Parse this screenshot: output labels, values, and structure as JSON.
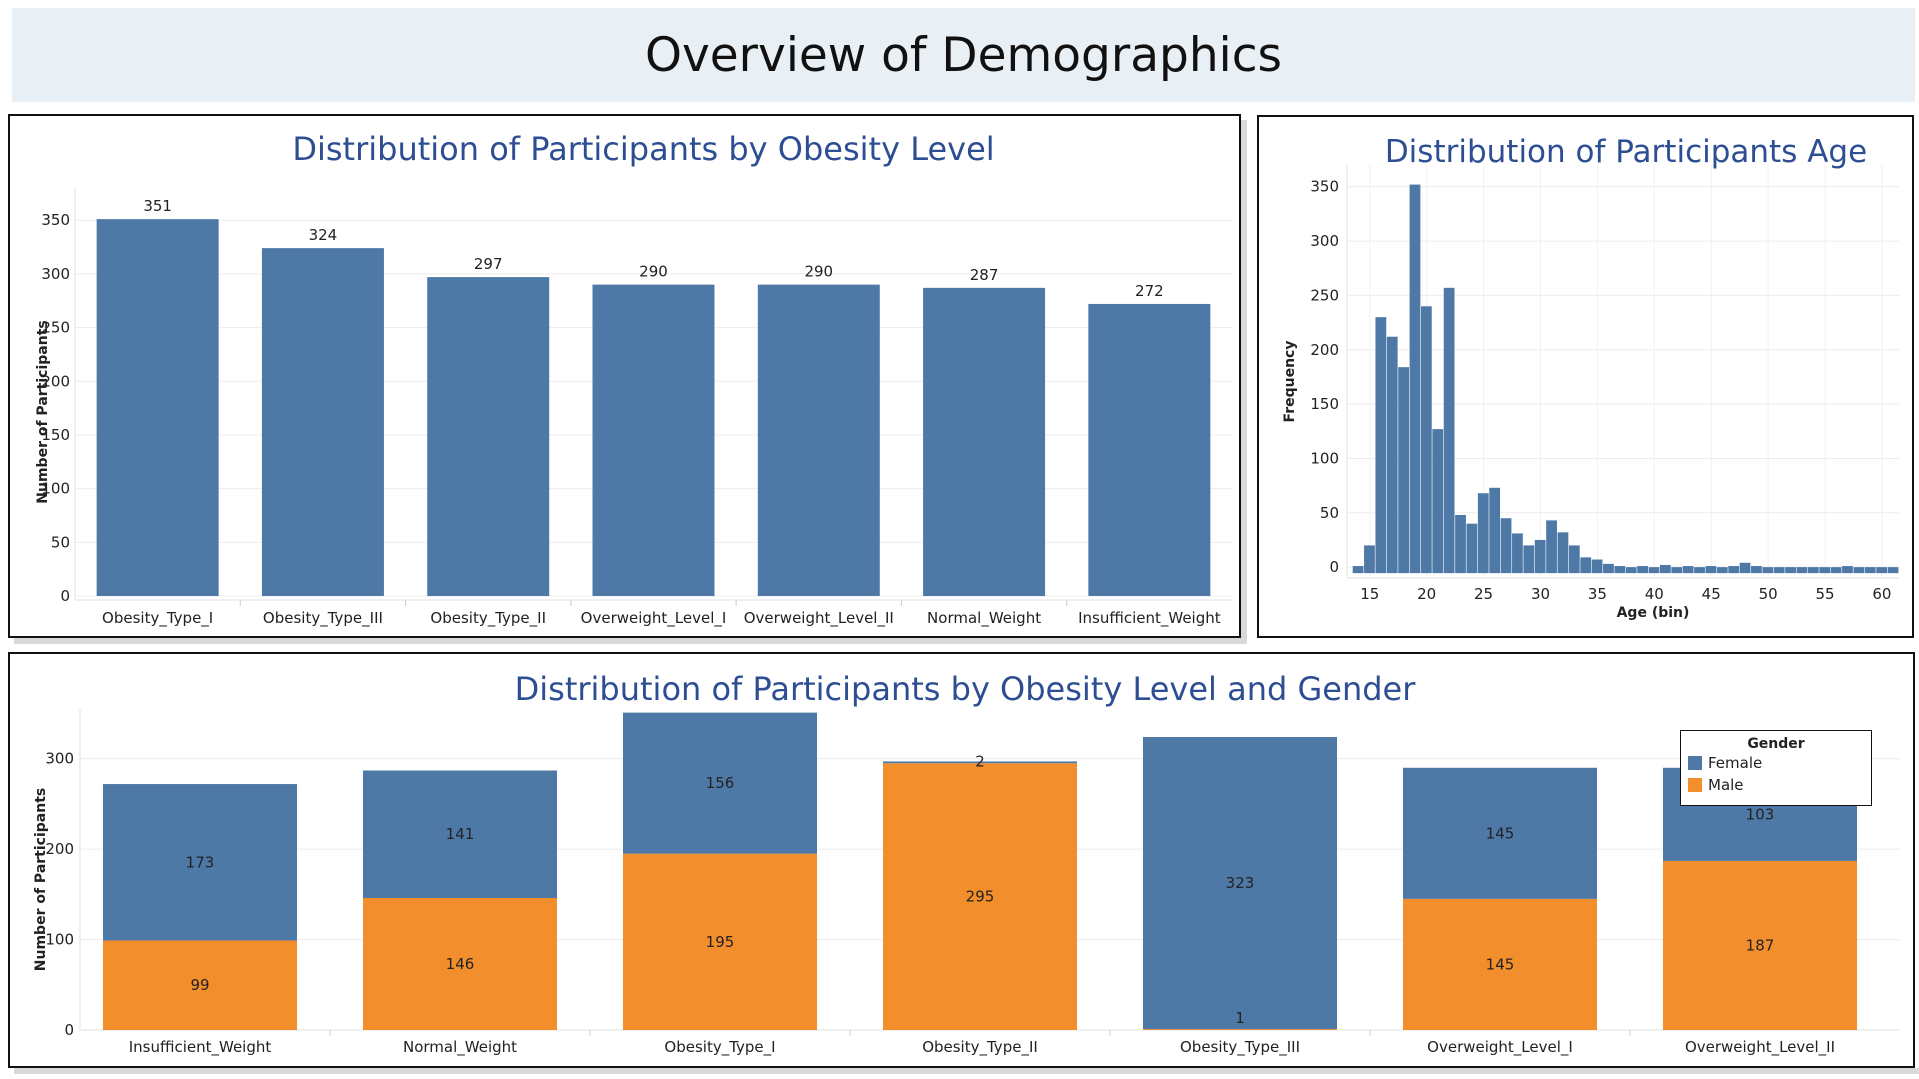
{
  "page": {
    "title": "Overview of Demographics"
  },
  "colors": {
    "blue": "#4e79a7",
    "orange": "#f28e2b",
    "header_bg": "#e8f0f6",
    "title": "#2d4e93"
  },
  "chart_data": [
    {
      "id": "obesity",
      "type": "bar",
      "title": "Distribution of Participants by Obesity Level",
      "xlabel": "",
      "ylabel": "Number of Participants",
      "categories": [
        "Obesity_Type_I",
        "Obesity_Type_III",
        "Obesity_Type_II",
        "Overweight_Level_I",
        "Overweight_Level_II",
        "Normal_Weight",
        "Insufficient_Weight"
      ],
      "values": [
        351,
        324,
        297,
        290,
        290,
        287,
        272
      ],
      "ylim": [
        0,
        380
      ],
      "yticks": [
        0,
        50,
        100,
        150,
        200,
        250,
        300,
        350
      ],
      "grid": true
    },
    {
      "id": "age",
      "type": "bar",
      "title": "Distribution of Participants Age",
      "xlabel": "Age (bin)",
      "ylabel": "Frequency",
      "bin_width": 1,
      "bin_starts": [
        14,
        15,
        16,
        17,
        18,
        19,
        20,
        21,
        22,
        23,
        24,
        25,
        26,
        27,
        28,
        29,
        30,
        31,
        32,
        33,
        34,
        35,
        36,
        37,
        38,
        39,
        40,
        41,
        42,
        43,
        44,
        45,
        46,
        47,
        48,
        49,
        50,
        51,
        52,
        53,
        54,
        55,
        56,
        57,
        58,
        59,
        60,
        61
      ],
      "values": [
        1,
        20,
        230,
        212,
        184,
        352,
        240,
        127,
        257,
        48,
        40,
        68,
        73,
        45,
        31,
        20,
        25,
        43,
        32,
        20,
        9,
        7,
        3,
        1,
        0,
        1,
        0,
        2,
        0,
        1,
        0,
        1,
        0,
        1,
        4,
        1,
        0,
        0,
        0,
        0,
        0,
        0,
        0,
        1,
        0,
        0,
        0,
        0
      ],
      "xticks": [
        15,
        20,
        25,
        30,
        35,
        40,
        45,
        50,
        55,
        60
      ],
      "xlim": [
        13,
        61.5
      ],
      "ylim": [
        -10,
        370
      ],
      "yticks": [
        0,
        50,
        100,
        150,
        200,
        250,
        300,
        350
      ],
      "grid": true
    },
    {
      "id": "gender",
      "type": "bar",
      "stacked": true,
      "title": "Distribution of Participants by Obesity Level and Gender",
      "xlabel": "",
      "ylabel": "Number of Participants",
      "categories": [
        "Insufficient_Weight",
        "Normal_Weight",
        "Obesity_Type_I",
        "Obesity_Type_II",
        "Obesity_Type_III",
        "Overweight_Level_I",
        "Overweight_Level_II"
      ],
      "series": [
        {
          "name": "Male",
          "values": [
            99,
            146,
            195,
            295,
            1,
            145,
            187
          ]
        },
        {
          "name": "Female",
          "values": [
            173,
            141,
            156,
            2,
            323,
            145,
            103
          ]
        }
      ],
      "ylim": [
        0,
        355
      ],
      "yticks": [
        0,
        100,
        200,
        300
      ],
      "legend": {
        "title": "Gender",
        "items": [
          "Female",
          "Male"
        ],
        "position": "top-right"
      },
      "grid": true
    }
  ]
}
